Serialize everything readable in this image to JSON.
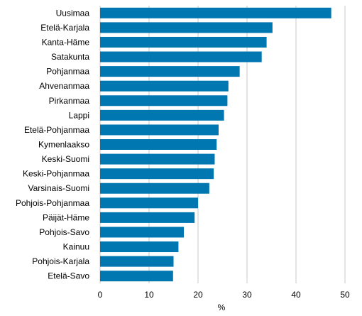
{
  "chart_data": {
    "type": "bar",
    "orientation": "horizontal",
    "categories": [
      "Uusimaa",
      "Etelä-Karjala",
      "Kanta-Häme",
      "Satakunta",
      "Pohjanmaa",
      "Ahvenanmaa",
      "Pirkanmaa",
      "Lappi",
      "Etelä-Pohjanmaa",
      "Kymenlaakso",
      "Keski-Suomi",
      "Keski-Pohjanmaa",
      "Varsinais-Suomi",
      "Pohjois-Pohjanmaa",
      "Päijät-Häme",
      "Pohjois-Savo",
      "Kainuu",
      "Pohjois-Karjala",
      "Etelä-Savo"
    ],
    "values": [
      47.2,
      35.2,
      34.0,
      33.0,
      28.5,
      26.2,
      26.0,
      25.3,
      24.2,
      23.8,
      23.4,
      23.2,
      22.3,
      20.0,
      19.3,
      17.1,
      16.0,
      15.0,
      14.9
    ],
    "title": "",
    "xlabel": "%",
    "ylabel": "",
    "xlim": [
      0,
      50
    ],
    "xticks": [
      0,
      10,
      20,
      30,
      40,
      50
    ],
    "grid": "vertical",
    "legend": "none",
    "bar_color": "#0077b0",
    "grid_color": "#c8c8c8"
  }
}
